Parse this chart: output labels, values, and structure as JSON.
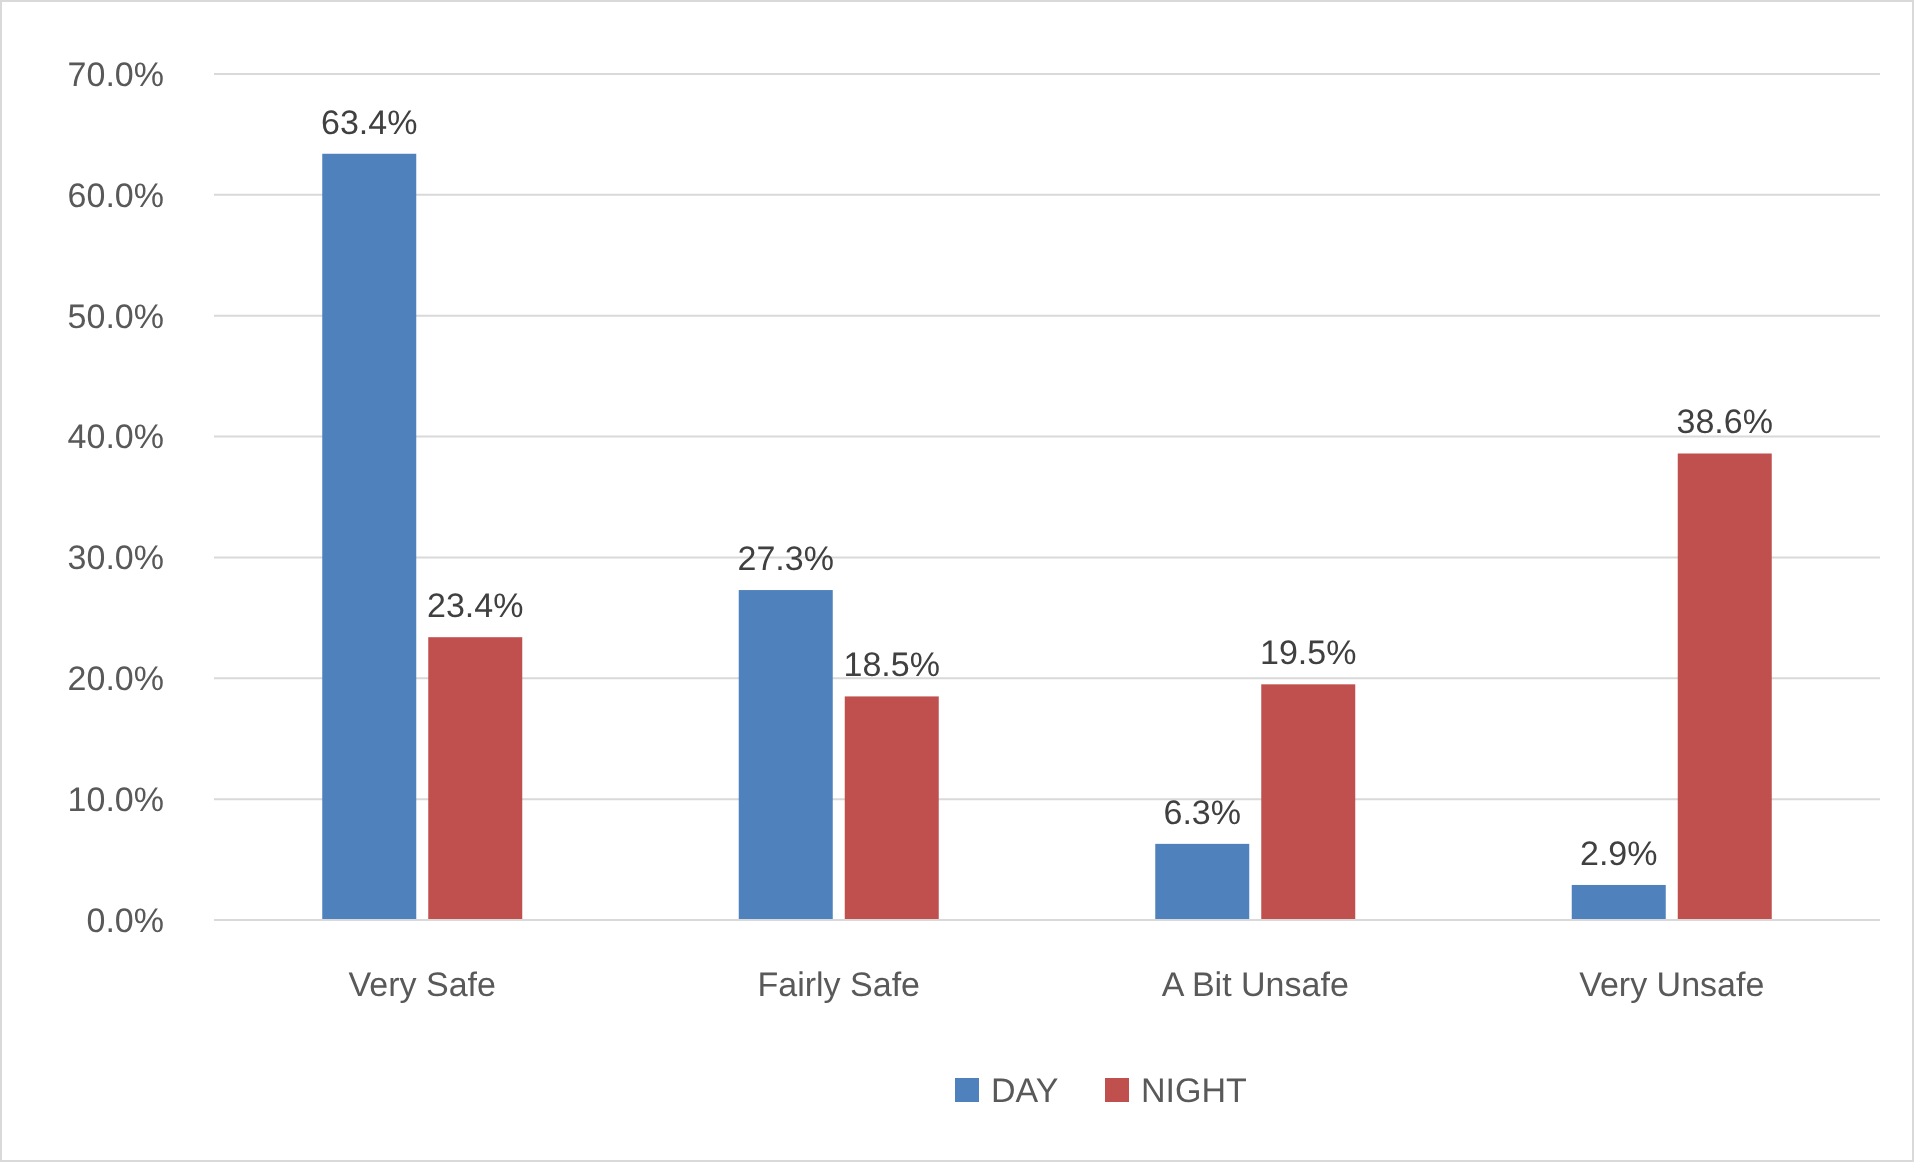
{
  "chart_data": {
    "type": "bar",
    "categories": [
      "Very Safe",
      "Fairly Safe",
      "A Bit Unsafe",
      "Very Unsafe"
    ],
    "series": [
      {
        "name": "DAY",
        "color": "#4f81bd",
        "values": [
          63.4,
          27.3,
          6.3,
          2.9
        ],
        "value_labels": [
          "63.4%",
          "27.3%",
          "6.3%",
          "2.9%"
        ]
      },
      {
        "name": "NIGHT",
        "color": "#c0504d",
        "values": [
          23.4,
          18.5,
          19.5,
          38.6
        ],
        "value_labels": [
          "23.4%",
          "18.5%",
          "19.5%",
          "38.6%"
        ]
      }
    ],
    "ylim": [
      0,
      70
    ],
    "yticks": [
      {
        "value": 0,
        "label": "0.0%"
      },
      {
        "value": 10,
        "label": "10.0%"
      },
      {
        "value": 20,
        "label": "20.0%"
      },
      {
        "value": 30,
        "label": "30.0%"
      },
      {
        "value": 40,
        "label": "40.0%"
      },
      {
        "value": 50,
        "label": "50.0%"
      },
      {
        "value": 60,
        "label": "60.0%"
      },
      {
        "value": 70,
        "label": "70.0%"
      }
    ],
    "grid": "y",
    "legend": "bottom"
  }
}
